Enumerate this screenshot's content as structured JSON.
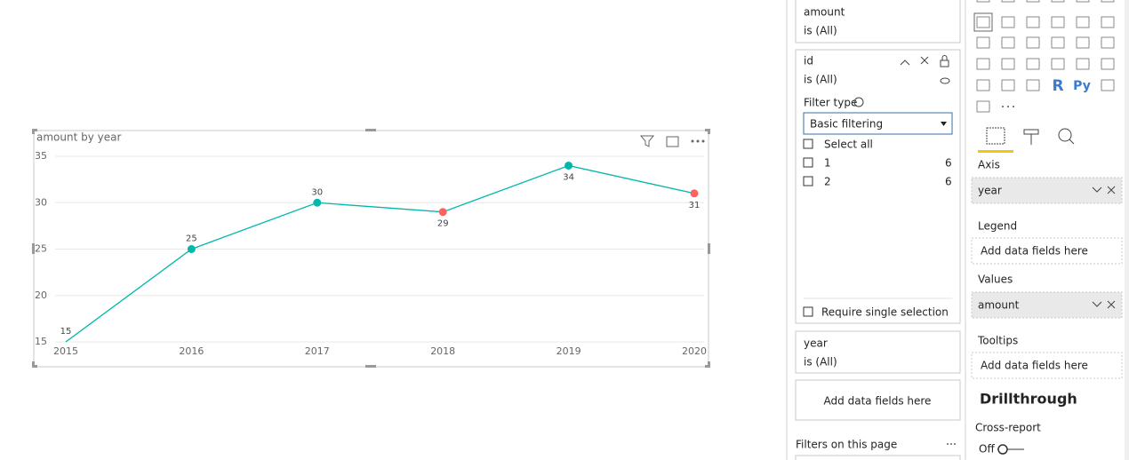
{
  "chart_data": {
    "type": "line",
    "title": "amount by year",
    "categories": [
      "2015",
      "2016",
      "2017",
      "2018",
      "2019",
      "2020"
    ],
    "values": [
      15,
      25,
      30,
      29,
      34,
      31
    ],
    "color": "#01b8aa",
    "marker_colors": [
      "#01b8aa",
      "#01b8aa",
      "#01b8aa",
      "#fd625e",
      "#01b8aa",
      "#fd625e"
    ],
    "ylim": [
      15,
      35
    ],
    "yticks": [
      15,
      20,
      25,
      30,
      35
    ],
    "grid": true
  },
  "filters": {
    "cards": [
      {
        "field": "amount",
        "state": "is (All)"
      },
      {
        "field": "id",
        "state": "is (All)",
        "filter_type_label": "Filter type",
        "filter_type": "Basic filtering",
        "select_all": "Select all",
        "items": [
          {
            "label": "1",
            "count": 6
          },
          {
            "label": "2",
            "count": 6
          }
        ],
        "require_single": "Require single selection"
      },
      {
        "field": "year",
        "state": "is (All)"
      }
    ],
    "add_fields": "Add data fields here",
    "page_section": "Filters on this page"
  },
  "visualizations": {
    "icon_labels": [
      "R",
      "Py"
    ],
    "wells": [
      {
        "label": "Axis",
        "field": "year"
      },
      {
        "label": "Legend",
        "placeholder": "Add data fields here"
      },
      {
        "label": "Values",
        "field": "amount"
      },
      {
        "label": "Tooltips",
        "placeholder": "Add data fields here"
      }
    ],
    "drillthrough": "Drillthrough",
    "cross_report": "Cross-report",
    "toggle": "Off"
  }
}
